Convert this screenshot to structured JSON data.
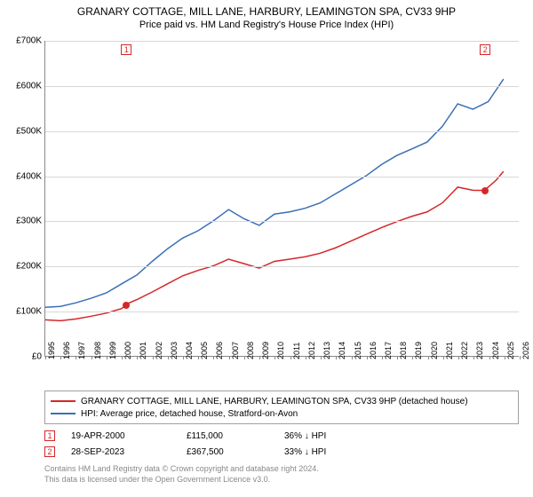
{
  "title": {
    "line1": "GRANARY COTTAGE, MILL LANE, HARBURY, LEAMINGTON SPA, CV33 9HP",
    "line2": "Price paid vs. HM Land Registry's House Price Index (HPI)"
  },
  "chart": {
    "type": "line",
    "background_color": "#ffffff",
    "grid_color": "#d8d8d8",
    "axis_color": "#888888",
    "x": {
      "min": 1995,
      "max": 2026,
      "ticks": [
        1995,
        1996,
        1997,
        1998,
        1999,
        2000,
        2001,
        2002,
        2003,
        2004,
        2005,
        2006,
        2007,
        2008,
        2009,
        2010,
        2011,
        2012,
        2013,
        2014,
        2015,
        2016,
        2017,
        2018,
        2019,
        2020,
        2021,
        2022,
        2023,
        2024,
        2025,
        2026
      ],
      "label_fontsize": 9
    },
    "y": {
      "min": 0,
      "max": 700000,
      "ticks": [
        0,
        100000,
        200000,
        300000,
        400000,
        500000,
        600000,
        700000
      ],
      "tick_labels": [
        "£0",
        "£100K",
        "£200K",
        "£300K",
        "£400K",
        "£500K",
        "£600K",
        "£700K"
      ],
      "label_fontsize": 10
    },
    "series": [
      {
        "name": "GRANARY COTTAGE, MILL LANE, HARBURY, LEAMINGTON SPA, CV33 9HP (detached house)",
        "color": "#d62728",
        "line_width": 1.5,
        "points": [
          [
            1995.0,
            80000
          ],
          [
            1996.0,
            78000
          ],
          [
            1997.0,
            82000
          ],
          [
            1998.0,
            88000
          ],
          [
            1999.0,
            95000
          ],
          [
            2000.0,
            105000
          ],
          [
            2000.3,
            115000
          ],
          [
            2001.0,
            125000
          ],
          [
            2002.0,
            142000
          ],
          [
            2003.0,
            160000
          ],
          [
            2004.0,
            178000
          ],
          [
            2005.0,
            190000
          ],
          [
            2006.0,
            200000
          ],
          [
            2007.0,
            215000
          ],
          [
            2008.0,
            205000
          ],
          [
            2009.0,
            195000
          ],
          [
            2010.0,
            210000
          ],
          [
            2011.0,
            215000
          ],
          [
            2012.0,
            220000
          ],
          [
            2013.0,
            228000
          ],
          [
            2014.0,
            240000
          ],
          [
            2015.0,
            255000
          ],
          [
            2016.0,
            270000
          ],
          [
            2017.0,
            285000
          ],
          [
            2018.0,
            298000
          ],
          [
            2019.0,
            310000
          ],
          [
            2020.0,
            320000
          ],
          [
            2021.0,
            340000
          ],
          [
            2022.0,
            375000
          ],
          [
            2023.0,
            368000
          ],
          [
            2023.75,
            367500
          ],
          [
            2024.0,
            375000
          ],
          [
            2024.5,
            390000
          ],
          [
            2025.0,
            410000
          ]
        ]
      },
      {
        "name": "HPI: Average price, detached house, Stratford-on-Avon",
        "color": "#3b6fb6",
        "line_width": 1.5,
        "points": [
          [
            1995.0,
            108000
          ],
          [
            1996.0,
            110000
          ],
          [
            1997.0,
            118000
          ],
          [
            1998.0,
            128000
          ],
          [
            1999.0,
            140000
          ],
          [
            2000.0,
            160000
          ],
          [
            2001.0,
            180000
          ],
          [
            2002.0,
            210000
          ],
          [
            2003.0,
            238000
          ],
          [
            2004.0,
            262000
          ],
          [
            2005.0,
            278000
          ],
          [
            2006.0,
            300000
          ],
          [
            2007.0,
            325000
          ],
          [
            2008.0,
            305000
          ],
          [
            2009.0,
            290000
          ],
          [
            2010.0,
            315000
          ],
          [
            2011.0,
            320000
          ],
          [
            2012.0,
            328000
          ],
          [
            2013.0,
            340000
          ],
          [
            2014.0,
            360000
          ],
          [
            2015.0,
            380000
          ],
          [
            2016.0,
            400000
          ],
          [
            2017.0,
            425000
          ],
          [
            2018.0,
            445000
          ],
          [
            2019.0,
            460000
          ],
          [
            2020.0,
            475000
          ],
          [
            2021.0,
            510000
          ],
          [
            2022.0,
            560000
          ],
          [
            2023.0,
            548000
          ],
          [
            2024.0,
            565000
          ],
          [
            2024.5,
            590000
          ],
          [
            2025.0,
            615000
          ]
        ]
      }
    ],
    "markers": [
      {
        "id": "1",
        "year": 2000.3,
        "value": 115000,
        "color": "#d62728"
      },
      {
        "id": "2",
        "year": 2023.75,
        "value": 367500,
        "color": "#d62728"
      }
    ]
  },
  "legend": {
    "items": [
      {
        "color": "#d62728",
        "label": "GRANARY COTTAGE, MILL LANE, HARBURY, LEAMINGTON SPA, CV33 9HP (detached house)"
      },
      {
        "color": "#3b6fb6",
        "label": "HPI: Average price, detached house, Stratford-on-Avon"
      }
    ]
  },
  "sales": [
    {
      "id": "1",
      "color": "#d62728",
      "date": "19-APR-2000",
      "price": "£115,000",
      "pct": "36% ↓ HPI"
    },
    {
      "id": "2",
      "color": "#d62728",
      "date": "28-SEP-2023",
      "price": "£367,500",
      "pct": "33% ↓ HPI"
    }
  ],
  "footer": {
    "line1": "Contains HM Land Registry data © Crown copyright and database right 2024.",
    "line2": "This data is licensed under the Open Government Licence v3.0."
  }
}
